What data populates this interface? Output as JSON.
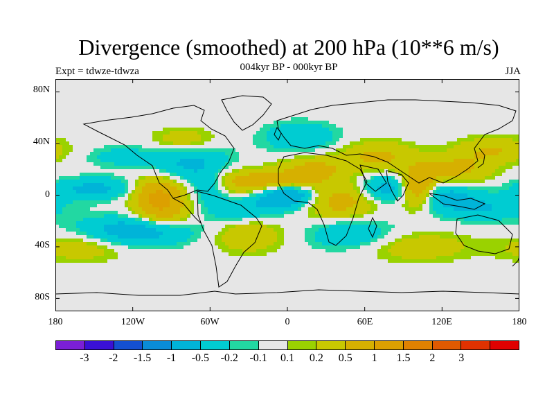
{
  "figure": {
    "title": "Divergence (smoothed) at 200 hPa (10**6 m/s)",
    "subtitle": "004kyr BP - 000kyr BP",
    "left_label": "Expt = tdwze-tdwza",
    "right_label": "JJA"
  },
  "axes": {
    "y_ticks": [
      "80N",
      "40N",
      "0",
      "40S",
      "80S"
    ],
    "x_ticks": [
      "180",
      "120W",
      "60W",
      "0",
      "60E",
      "120E",
      "180"
    ]
  },
  "colorbar": {
    "colors": [
      "#7b1fd6",
      "#3a10d6",
      "#1450d2",
      "#0a8cd8",
      "#00b4d8",
      "#00ccd2",
      "#22d8a2",
      "#e6e6e6",
      "#9ad200",
      "#c8c800",
      "#d6b000",
      "#dca000",
      "#e08200",
      "#e05a00",
      "#e03200",
      "#e00000"
    ],
    "labels": [
      "-3",
      "-2",
      "-1.5",
      "-1",
      "-0.5",
      "-0.2",
      "-0.1",
      "0.1",
      "0.2",
      "0.5",
      "1",
      "1.5",
      "2",
      "3"
    ]
  },
  "chart_data": {
    "type": "heatmap",
    "title": "Divergence (smoothed) at 200 hPa (10**6 m/s)",
    "projection": "cylindrical equidistant",
    "lon_range": [
      -180,
      180
    ],
    "lat_range": [
      -90,
      90
    ],
    "levels": [
      -3,
      -2,
      -1.5,
      -1,
      -0.5,
      -0.2,
      -0.1,
      0.1,
      0.2,
      0.5,
      1,
      1.5,
      2,
      3
    ],
    "features": [
      {
        "lon": -150,
        "lat": 5,
        "sx": 25,
        "sy": 6,
        "v": -0.6
      },
      {
        "lon": -120,
        "lat": -28,
        "sx": 30,
        "sy": 8,
        "v": -0.8
      },
      {
        "lon": -100,
        "lat": 0,
        "sx": 14,
        "sy": 10,
        "v": 1.2
      },
      {
        "lon": -95,
        "lat": -15,
        "sx": 14,
        "sy": 7,
        "v": 0.5
      },
      {
        "lon": -75,
        "lat": 25,
        "sx": 22,
        "sy": 12,
        "v": -0.6
      },
      {
        "lon": -80,
        "lat": 42,
        "sx": 18,
        "sy": 7,
        "v": 0.5
      },
      {
        "lon": -60,
        "lat": 5,
        "sx": 10,
        "sy": 8,
        "v": -0.4
      },
      {
        "lon": -40,
        "lat": 10,
        "sx": 16,
        "sy": 8,
        "v": 0.4
      },
      {
        "lon": -35,
        "lat": -12,
        "sx": 20,
        "sy": 8,
        "v": -0.5
      },
      {
        "lon": -30,
        "lat": -30,
        "sx": 18,
        "sy": 10,
        "v": 0.5
      },
      {
        "lon": -10,
        "lat": 10,
        "sx": 22,
        "sy": 6,
        "v": 0.8
      },
      {
        "lon": 0,
        "lat": 0,
        "sx": 16,
        "sy": 7,
        "v": -1.2
      },
      {
        "lon": 10,
        "lat": 45,
        "sx": 20,
        "sy": 8,
        "v": -0.5
      },
      {
        "lon": 20,
        "lat": 20,
        "sx": 18,
        "sy": 7,
        "v": 0.6
      },
      {
        "lon": 40,
        "lat": -5,
        "sx": 22,
        "sy": 10,
        "v": 0.7
      },
      {
        "lon": 50,
        "lat": -30,
        "sx": 24,
        "sy": 9,
        "v": -0.5
      },
      {
        "lon": 70,
        "lat": 30,
        "sx": 20,
        "sy": 8,
        "v": 0.6
      },
      {
        "lon": 80,
        "lat": 5,
        "sx": 16,
        "sy": 8,
        "v": -0.8
      },
      {
        "lon": 100,
        "lat": 5,
        "sx": 10,
        "sy": 10,
        "v": 1.3
      },
      {
        "lon": 120,
        "lat": 0,
        "sx": 18,
        "sy": 7,
        "v": -0.6
      },
      {
        "lon": 130,
        "lat": 20,
        "sx": 20,
        "sy": 8,
        "v": 0.6
      },
      {
        "lon": 150,
        "lat": -10,
        "sx": 25,
        "sy": 7,
        "v": -0.5
      },
      {
        "lon": 160,
        "lat": 35,
        "sx": 20,
        "sy": 7,
        "v": 0.5
      },
      {
        "lon": -160,
        "lat": -40,
        "sx": 25,
        "sy": 8,
        "v": 0.4
      },
      {
        "lon": 100,
        "lat": -40,
        "sx": 30,
        "sy": 8,
        "v": 0.4
      },
      {
        "lon": -130,
        "lat": 30,
        "sx": 20,
        "sy": 6,
        "v": -0.3
      }
    ]
  }
}
